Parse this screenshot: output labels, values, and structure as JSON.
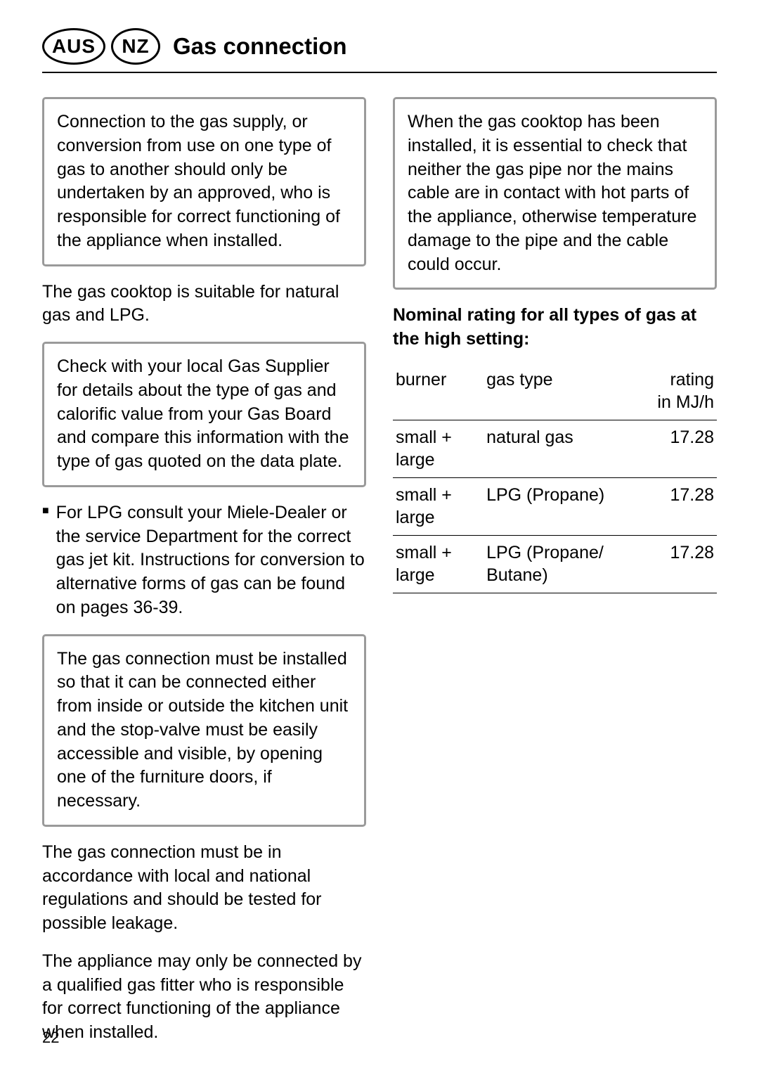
{
  "header": {
    "badge_aus": "AUS",
    "badge_nz": "NZ",
    "title": "Gas connection"
  },
  "left": {
    "box1": "Connection to the gas supply, or conversion from use on one type of gas to another should only be undertaken by an approved, who is responsible for correct functioning of the appliance when installed.",
    "para1": "The gas cooktop is suitable for natural gas and LPG.",
    "box2": "Check with your local Gas Supplier for details about the type of gas and calorific value from your Gas Board and compare this information with the type of gas quoted on the data plate.",
    "bullet1": "For LPG  consult your Miele-Dealer or the service Department for the correct gas jet kit. Instructions for conversion to alternative forms of gas can be found on pages 36-39.",
    "box3": "The gas connection must be installed so that it can be connected either from inside or outside the kitchen unit and the stop-valve must be easily accessible and visible, by opening one of the furniture doors, if necessary.",
    "para2": "The gas connection must be in accordance with local and national regulations and should be tested for possible leakage.",
    "para3": "The appliance may only be connected by a qualified gas fitter who is responsible for correct functioning of the appliance when installed."
  },
  "right": {
    "box1": "When the gas cooktop has been installed, it is essential to check that neither the gas pipe nor the mains cable are in contact with hot parts of the appliance, otherwise temperature damage to the pipe and the cable could occur.",
    "subheading": "Nominal rating for all types of gas at the high setting:"
  },
  "table": {
    "headers": {
      "burner": "burner",
      "gas_type": "gas type",
      "rating_l1": "rating",
      "rating_l2": "in MJ/h"
    },
    "rows": [
      {
        "burner": "small + large",
        "gas": "natural gas",
        "rating": "17.28"
      },
      {
        "burner": "small + large",
        "gas": "LPG (Propane)",
        "rating": "17.28"
      },
      {
        "burner": "small + large",
        "gas": "LPG (Propane/ Butane)",
        "rating": "17.28"
      }
    ]
  },
  "page_number": "22"
}
